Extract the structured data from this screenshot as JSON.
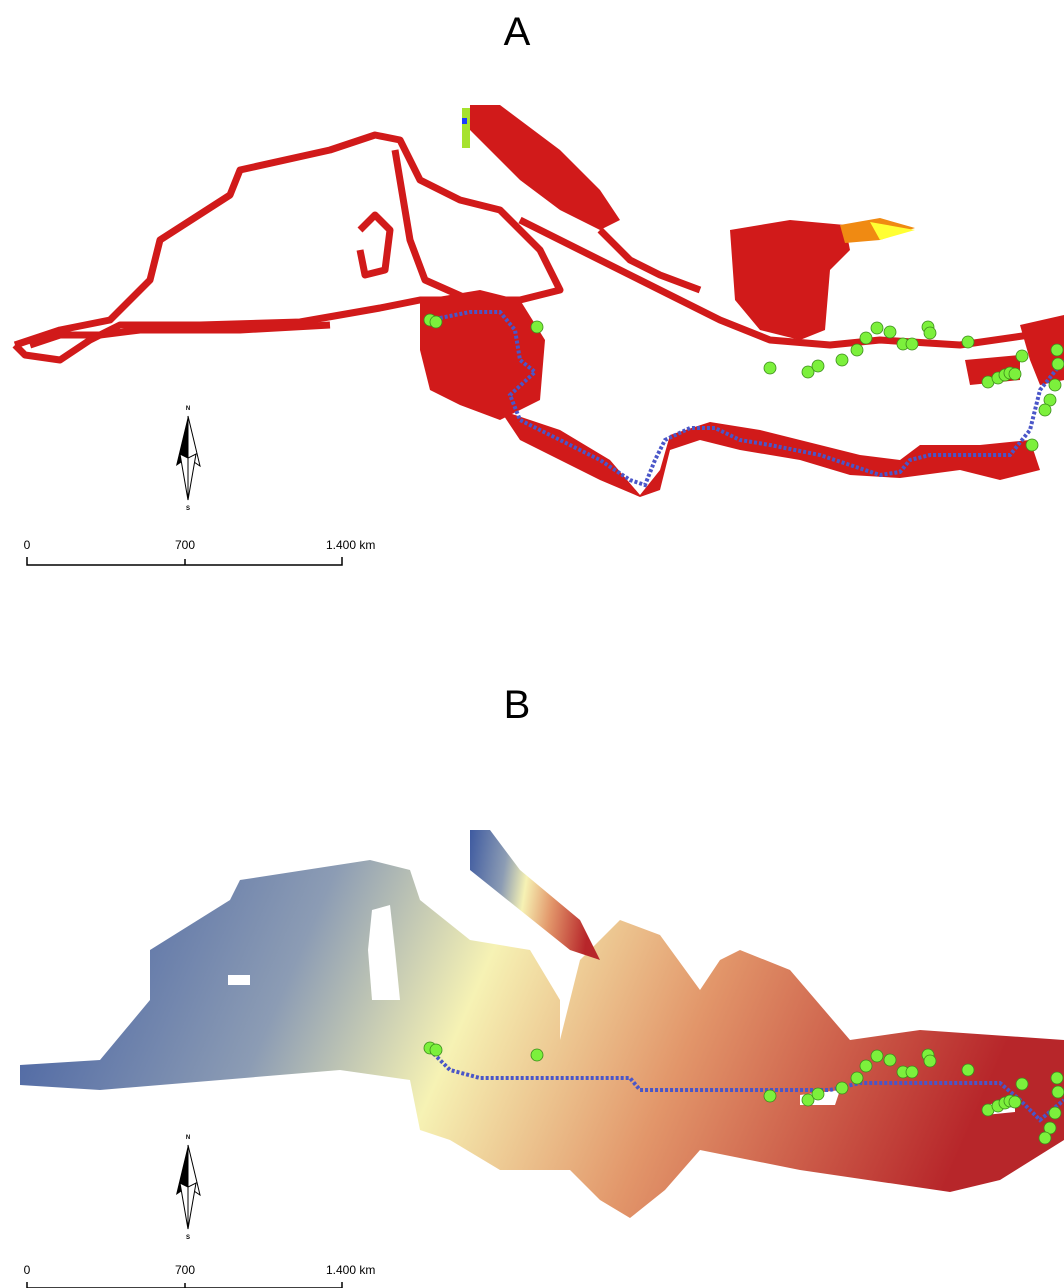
{
  "panels": [
    {
      "label": "A",
      "scale_bar": {
        "ticks": [
          "0",
          "700",
          "1.400 km"
        ]
      },
      "north_arrow": {
        "north": "N",
        "south": "S"
      }
    },
    {
      "label": "B",
      "scale_bar": {
        "ticks": [
          "0",
          "700",
          "1.400 km"
        ]
      },
      "north_arrow": {
        "north": "N",
        "south": "S"
      }
    }
  ]
}
